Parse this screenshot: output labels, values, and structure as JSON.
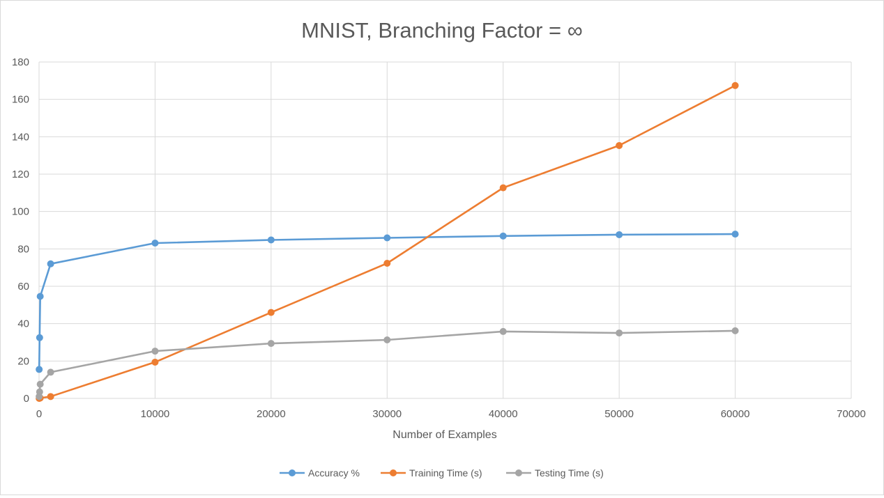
{
  "chart_data": {
    "type": "line",
    "title": "MNIST, Branching Factor = ∞",
    "xlabel": "Number of Examples",
    "ylabel": "",
    "xlim": [
      0,
      70000
    ],
    "ylim": [
      0,
      180
    ],
    "xticks": [
      0,
      10000,
      20000,
      30000,
      40000,
      50000,
      60000,
      70000
    ],
    "yticks": [
      0,
      20,
      40,
      60,
      80,
      100,
      120,
      140,
      160,
      180
    ],
    "grid": true,
    "legend_position": "bottom",
    "series": [
      {
        "name": "Accuracy %",
        "color": "#5B9BD5",
        "points": [
          [
            10,
            15.5
          ],
          [
            50,
            32.5
          ],
          [
            100,
            54.6
          ],
          [
            1000,
            72.0
          ],
          [
            10000,
            83.1
          ],
          [
            20000,
            84.8
          ],
          [
            30000,
            85.9
          ],
          [
            40000,
            86.9
          ],
          [
            50000,
            87.6
          ],
          [
            60000,
            87.9
          ]
        ]
      },
      {
        "name": "Training Time (s)",
        "color": "#ED7D31",
        "points": [
          [
            10,
            0.0
          ],
          [
            50,
            0.1
          ],
          [
            100,
            0.2
          ],
          [
            1000,
            1.0
          ],
          [
            10000,
            19.4
          ],
          [
            20000,
            46.0
          ],
          [
            30000,
            72.3
          ],
          [
            40000,
            112.7
          ],
          [
            50000,
            135.3
          ],
          [
            60000,
            167.4
          ]
        ]
      },
      {
        "name": "Testing Time (s)",
        "color": "#A5A5A5",
        "points": [
          [
            10,
            1.0
          ],
          [
            50,
            3.5
          ],
          [
            100,
            7.6
          ],
          [
            1000,
            14.0
          ],
          [
            10000,
            25.3
          ],
          [
            20000,
            29.4
          ],
          [
            30000,
            31.3
          ],
          [
            40000,
            35.8
          ],
          [
            50000,
            35.0
          ],
          [
            60000,
            36.2
          ]
        ]
      }
    ]
  }
}
